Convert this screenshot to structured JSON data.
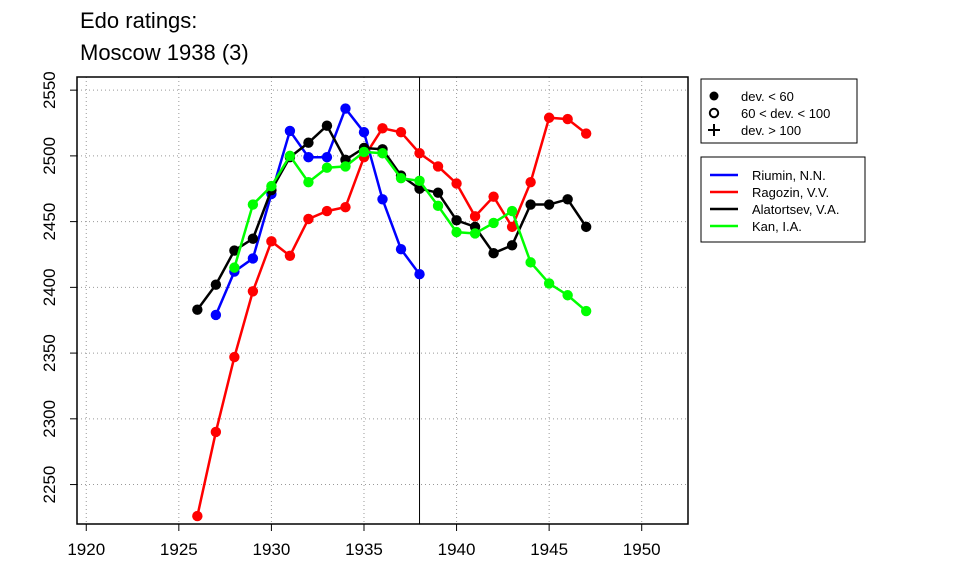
{
  "title_line1": "Edo ratings:",
  "title_line2": "Moscow 1938 (3)",
  "chart_data": {
    "type": "line",
    "xlim": [
      1919.5,
      1952.5
    ],
    "ylim": [
      2220,
      2560
    ],
    "x_ticks": [
      1920,
      1925,
      1930,
      1935,
      1940,
      1945,
      1950
    ],
    "y_ticks": [
      2250,
      2300,
      2350,
      2400,
      2450,
      2500,
      2550
    ],
    "grid": true,
    "vline": 1938,
    "marker_legend": [
      {
        "symbol": "filled-circle",
        "label": "dev. < 60"
      },
      {
        "symbol": "open-circle",
        "label": "60 < dev. < 100"
      },
      {
        "symbol": "plus",
        "label": "dev. > 100"
      }
    ],
    "series": [
      {
        "name": "Riumin, N.N.",
        "color": "#0000ff",
        "x": [
          1927,
          1928,
          1929,
          1930,
          1931,
          1932,
          1933,
          1934,
          1935,
          1936,
          1937,
          1938
        ],
        "y": [
          2379,
          2412,
          2422,
          2471,
          2519,
          2499,
          2499,
          2536,
          2518,
          2467,
          2429,
          2410
        ]
      },
      {
        "name": "Ragozin, V.V.",
        "color": "#ff0000",
        "x": [
          1926,
          1927,
          1928,
          1929,
          1930,
          1931,
          1932,
          1933,
          1934,
          1935,
          1936,
          1937,
          1938,
          1939,
          1940,
          1941,
          1942,
          1943,
          1944,
          1945,
          1946,
          1947
        ],
        "y": [
          2226,
          2290,
          2347,
          2397,
          2435,
          2424,
          2452,
          2458,
          2461,
          2499,
          2521,
          2518,
          2502,
          2492,
          2479,
          2454,
          2469,
          2446,
          2480,
          2529,
          2528,
          2517
        ]
      },
      {
        "name": "Alatortsev, V.A.",
        "color": "#000000",
        "x": [
          1926,
          1927,
          1928,
          1929,
          1930,
          1931,
          1932,
          1933,
          1934,
          1935,
          1936,
          1937,
          1938,
          1939,
          1940,
          1941,
          1942,
          1943,
          1944,
          1945,
          1946,
          1947
        ],
        "y": [
          2383,
          2402,
          2428,
          2437,
          2474,
          2499,
          2510,
          2523,
          2497,
          2506,
          2505,
          2485,
          2475,
          2472,
          2451,
          2446,
          2426,
          2432,
          2463,
          2463,
          2467,
          2446
        ]
      },
      {
        "name": "Kan, I.A.",
        "color": "#00ff00",
        "x": [
          1928,
          1929,
          1930,
          1931,
          1932,
          1933,
          1934,
          1935,
          1936,
          1937,
          1938,
          1939,
          1940,
          1941,
          1942,
          1943,
          1944,
          1945,
          1946,
          1947
        ],
        "y": [
          2415,
          2463,
          2477,
          2500,
          2480,
          2491,
          2492,
          2503,
          2502,
          2483,
          2481,
          2462,
          2442,
          2441,
          2449,
          2458,
          2419,
          2403,
          2394,
          2382
        ]
      }
    ]
  }
}
